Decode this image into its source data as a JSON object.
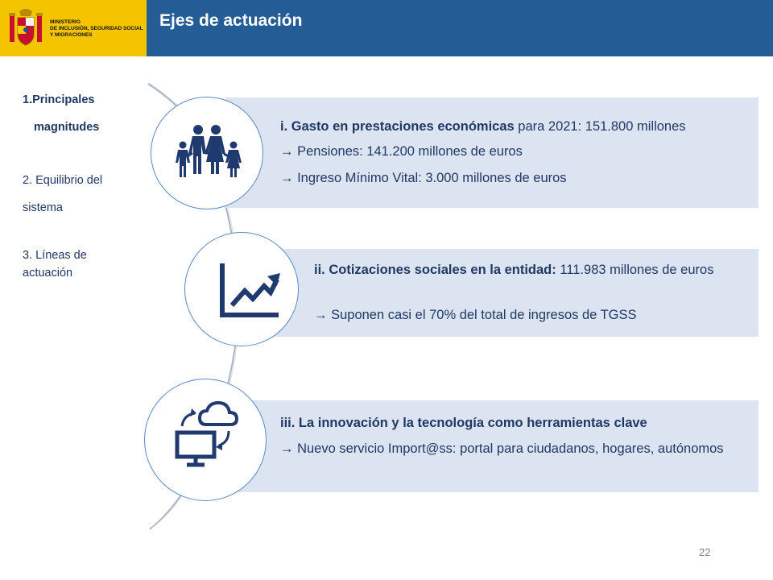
{
  "header": {
    "ministry_lines": [
      "MINISTERIO",
      "DE INCLUSIÓN, SEGURIDAD SOCIAL",
      "Y MIGRACIONES"
    ],
    "title": "Ejes de actuación",
    "brand_color": "#f4c400",
    "title_bar_color": "#245c96"
  },
  "sidebar": {
    "items": [
      {
        "line1": "1.Principales",
        "line2": "magnitudes"
      },
      {
        "line1": "2. Equilibrio del",
        "line2": "sistema"
      },
      {
        "line1": "3. Líneas de",
        "line2": "actuación"
      }
    ]
  },
  "axes": [
    {
      "icon": "family-icon",
      "heading": "i. Gasto en prestaciones económicas",
      "heading_rest": " para 2021: 151.800 millones",
      "bullets": [
        "Pensiones: 141.200 millones de euros",
        "Ingreso Mínimo Vital: 3.000 millones de euros"
      ]
    },
    {
      "icon": "growth-chart-icon",
      "heading": "ii. Cotizaciones sociales en la entidad:",
      "heading_rest": " 111.983 millones de euros",
      "bullets": [
        "Suponen casi el 70% del total de ingresos de TGSS"
      ]
    },
    {
      "icon": "cloud-computer-icon",
      "heading": "iii. La innovación y la tecnología como herramientas clave",
      "heading_rest": "",
      "bullets": [
        "Nuevo servicio Import@ss: portal para ciudadanos, hogares, autónomos"
      ]
    }
  ],
  "arrow_glyph": "→",
  "page_number": "22"
}
